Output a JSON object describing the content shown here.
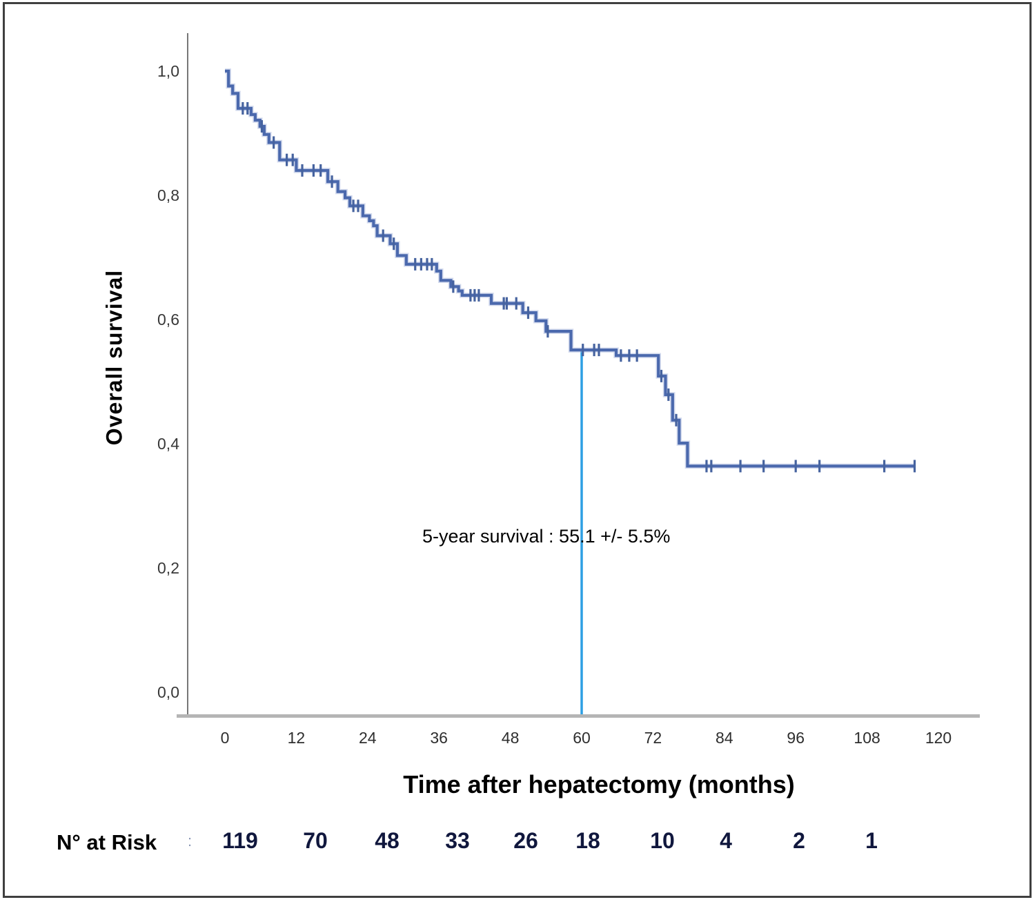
{
  "figure": {
    "y_axis": {
      "label": "Overall survival",
      "ticks": [
        "1,0",
        "0,8",
        "0,6",
        "0,4",
        "0,2",
        "0,0"
      ]
    },
    "x_axis": {
      "label": "Time after hepatectomy (months)",
      "ticks": [
        "0",
        "12",
        "24",
        "36",
        "48",
        "60",
        "72",
        "84",
        "96",
        "108",
        "120"
      ]
    },
    "annotation": "5-year survival : 55.1 +/- 5.5%",
    "risk_row": {
      "label": "N° at Risk",
      "separator": ":",
      "values": [
        "119",
        "70",
        "48",
        "33",
        "26",
        "18",
        "10",
        "4",
        "2",
        "1"
      ]
    }
  },
  "colors": {
    "curve": "#4b69ad",
    "curve_halo": "#a9b7dd",
    "censor": "#46639f",
    "five_year_line": "#2d9fe3",
    "x_axis": "#b5b5b5",
    "y_axis": "#777777",
    "text": "#000000",
    "tick_text": "#333333",
    "risk_number": "#10173d",
    "frame": "#3f3f3f"
  },
  "chart_data": {
    "type": "line",
    "subtype": "kaplan_meier_step",
    "title": "",
    "xlabel": "Time after hepatectomy (months)",
    "ylabel": "Overall survival",
    "xlim": [
      0,
      120
    ],
    "ylim": [
      0.0,
      1.0
    ],
    "x_ticks": [
      0,
      12,
      24,
      36,
      48,
      60,
      72,
      84,
      96,
      108,
      120
    ],
    "y_ticks": [
      1.0,
      0.8,
      0.6,
      0.4,
      0.2,
      0.0
    ],
    "grid": false,
    "legend": "none",
    "series": [
      {
        "name": "Overall survival",
        "steps": [
          [
            0,
            1.0
          ],
          [
            0.6,
            0.976
          ],
          [
            1.3,
            0.964
          ],
          [
            2.2,
            0.94
          ],
          [
            4.4,
            0.93
          ],
          [
            5.1,
            0.921
          ],
          [
            5.9,
            0.911
          ],
          [
            6.6,
            0.898
          ],
          [
            7.4,
            0.885
          ],
          [
            9.2,
            0.857
          ],
          [
            12.0,
            0.84
          ],
          [
            17.3,
            0.822
          ],
          [
            19.0,
            0.806
          ],
          [
            20.2,
            0.796
          ],
          [
            21.0,
            0.783
          ],
          [
            23.2,
            0.767
          ],
          [
            24.3,
            0.759
          ],
          [
            25.0,
            0.751
          ],
          [
            25.6,
            0.735
          ],
          [
            27.8,
            0.722
          ],
          [
            29.0,
            0.703
          ],
          [
            30.5,
            0.689
          ],
          [
            35.6,
            0.678
          ],
          [
            36.3,
            0.663
          ],
          [
            38.0,
            0.653
          ],
          [
            39.3,
            0.646
          ],
          [
            39.9,
            0.639
          ],
          [
            44.8,
            0.626
          ],
          [
            50.1,
            0.611
          ],
          [
            52.3,
            0.598
          ],
          [
            54.0,
            0.581
          ],
          [
            58.2,
            0.551
          ],
          [
            65.8,
            0.542
          ],
          [
            72.9,
            0.509
          ],
          [
            74.1,
            0.479
          ],
          [
            75.3,
            0.438
          ],
          [
            76.4,
            0.401
          ],
          [
            77.8,
            0.364
          ]
        ],
        "censor_marks": [
          [
            3.0,
            0.94
          ],
          [
            3.8,
            0.94
          ],
          [
            6.2,
            0.911
          ],
          [
            8.2,
            0.885
          ],
          [
            10.4,
            0.857
          ],
          [
            11.4,
            0.857
          ],
          [
            13.0,
            0.84
          ],
          [
            14.9,
            0.84
          ],
          [
            16.1,
            0.84
          ],
          [
            18.0,
            0.822
          ],
          [
            21.6,
            0.783
          ],
          [
            22.4,
            0.783
          ],
          [
            26.6,
            0.735
          ],
          [
            28.4,
            0.722
          ],
          [
            32.0,
            0.689
          ],
          [
            33.0,
            0.689
          ],
          [
            34.0,
            0.689
          ],
          [
            34.8,
            0.689
          ],
          [
            38.4,
            0.653
          ],
          [
            41.3,
            0.639
          ],
          [
            42.0,
            0.639
          ],
          [
            42.7,
            0.639
          ],
          [
            46.9,
            0.626
          ],
          [
            47.4,
            0.626
          ],
          [
            49.0,
            0.626
          ],
          [
            51.0,
            0.611
          ],
          [
            54.3,
            0.581
          ],
          [
            60.2,
            0.551
          ],
          [
            62.1,
            0.551
          ],
          [
            62.9,
            0.551
          ],
          [
            66.6,
            0.542
          ],
          [
            68.0,
            0.542
          ],
          [
            69.3,
            0.542
          ],
          [
            73.4,
            0.509
          ],
          [
            74.6,
            0.479
          ],
          [
            75.9,
            0.438
          ],
          [
            81.0,
            0.364
          ],
          [
            81.8,
            0.364
          ],
          [
            86.7,
            0.364
          ],
          [
            90.6,
            0.364
          ],
          [
            96.0,
            0.364
          ],
          [
            100.0,
            0.364
          ],
          [
            110.9,
            0.364
          ],
          [
            116.0,
            0.364
          ]
        ],
        "end_time": 116
      }
    ],
    "five_year_marker": {
      "time": 60,
      "survival": 0.551,
      "label": "5-year survival : 55.1 +/- 5.5%"
    },
    "number_at_risk": {
      "label": "N° at Risk",
      "times": [
        0,
        12,
        24,
        36,
        48,
        60,
        72,
        84,
        96,
        108
      ],
      "values": [
        119,
        70,
        48,
        33,
        26,
        18,
        10,
        4,
        2,
        1
      ]
    }
  }
}
